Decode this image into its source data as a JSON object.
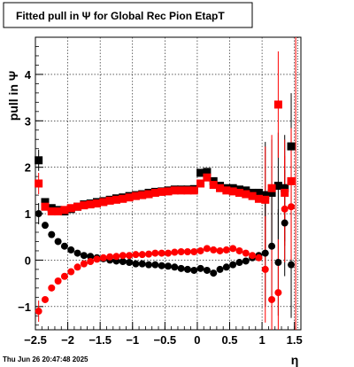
{
  "chart_data": {
    "type": "scatter",
    "title": "Fitted pull in  Ψ  for Global Rec Pion EtapT",
    "xlabel": "η",
    "ylabel": "pull in  Ψ",
    "xlim": [
      -2.5,
      1.6
    ],
    "ylim": [
      -1.5,
      4.8
    ],
    "xticks": [
      -2.5,
      -2,
      -1.5,
      -1,
      -0.5,
      0,
      0.5,
      1,
      1.5
    ],
    "xtick_labels": [
      "−2.5",
      "−2",
      "−1.5",
      "−1",
      "−0.5",
      "0",
      "0.5",
      "1",
      "1.5"
    ],
    "yticks": [
      -1,
      0,
      1,
      2,
      3,
      4
    ],
    "ytick_labels": [
      "−1",
      "0",
      "1",
      "2",
      "3",
      "4"
    ],
    "grid": true,
    "footer": "Thu Jun 26 20:47:48 2025",
    "series": [
      {
        "marker": "square",
        "color": "#000000",
        "x": [
          -2.45,
          -2.35,
          -2.25,
          -2.15,
          -2.05,
          -1.95,
          -1.85,
          -1.75,
          -1.65,
          -1.55,
          -1.45,
          -1.35,
          -1.25,
          -1.15,
          -1.05,
          -0.95,
          -0.85,
          -0.75,
          -0.65,
          -0.55,
          -0.45,
          -0.35,
          -0.25,
          -0.15,
          -0.05,
          0.05,
          0.15,
          0.25,
          0.35,
          0.45,
          0.55,
          0.65,
          0.75,
          0.85,
          0.95,
          1.05,
          1.15,
          1.25,
          1.35,
          1.45
        ],
        "y": [
          2.15,
          1.25,
          1.12,
          1.08,
          1.05,
          1.1,
          1.15,
          1.2,
          1.22,
          1.25,
          1.27,
          1.3,
          1.33,
          1.35,
          1.38,
          1.4,
          1.42,
          1.45,
          1.47,
          1.48,
          1.5,
          1.52,
          1.52,
          1.52,
          1.53,
          1.88,
          1.9,
          1.7,
          1.6,
          1.55,
          1.55,
          1.52,
          1.5,
          1.45,
          1.45,
          1.4,
          1.45,
          1.6,
          1.55,
          2.45
        ]
      },
      {
        "marker": "square",
        "color": "#ff0000",
        "x": [
          -2.45,
          -2.35,
          -2.25,
          -2.15,
          -2.05,
          -1.95,
          -1.85,
          -1.75,
          -1.65,
          -1.55,
          -1.45,
          -1.35,
          -1.25,
          -1.15,
          -1.05,
          -0.95,
          -0.85,
          -0.75,
          -0.65,
          -0.55,
          -0.45,
          -0.35,
          -0.25,
          -0.15,
          -0.05,
          0.05,
          0.15,
          0.25,
          0.35,
          0.45,
          0.55,
          0.65,
          0.75,
          0.85,
          0.95,
          1.05,
          1.15,
          1.25,
          1.35,
          1.45
        ],
        "y": [
          1.65,
          1.15,
          1.05,
          1.05,
          1.08,
          1.12,
          1.15,
          1.18,
          1.2,
          1.22,
          1.25,
          1.28,
          1.3,
          1.32,
          1.35,
          1.38,
          1.4,
          1.42,
          1.45,
          1.47,
          1.48,
          1.5,
          1.5,
          1.5,
          1.5,
          1.65,
          1.78,
          1.62,
          1.55,
          1.5,
          1.48,
          1.45,
          1.42,
          1.38,
          1.32,
          1.3,
          1.55,
          3.35,
          1.45,
          1.7
        ]
      },
      {
        "marker": "circle",
        "color": "#000000",
        "x": [
          -2.45,
          -2.35,
          -2.25,
          -2.15,
          -2.05,
          -1.95,
          -1.85,
          -1.75,
          -1.65,
          -1.55,
          -1.45,
          -1.35,
          -1.25,
          -1.15,
          -1.05,
          -0.95,
          -0.85,
          -0.75,
          -0.65,
          -0.55,
          -0.45,
          -0.35,
          -0.25,
          -0.15,
          -0.05,
          0.05,
          0.15,
          0.25,
          0.35,
          0.45,
          0.55,
          0.65,
          0.75,
          0.85,
          0.95,
          1.05,
          1.15,
          1.25,
          1.35,
          1.45
        ],
        "y": [
          1.0,
          0.75,
          0.55,
          0.4,
          0.3,
          0.22,
          0.15,
          0.1,
          0.08,
          0.05,
          0.03,
          0.0,
          -0.02,
          -0.03,
          -0.05,
          -0.08,
          -0.08,
          -0.1,
          -0.1,
          -0.12,
          -0.13,
          -0.15,
          -0.18,
          -0.2,
          -0.22,
          -0.18,
          -0.22,
          -0.28,
          -0.2,
          -0.15,
          -0.1,
          -0.05,
          -0.02,
          0.05,
          0.1,
          0.15,
          0.3,
          -0.05,
          0.8,
          -0.1
        ]
      },
      {
        "marker": "circle",
        "color": "#ff0000",
        "x": [
          -2.45,
          -2.35,
          -2.25,
          -2.15,
          -2.05,
          -1.95,
          -1.85,
          -1.75,
          -1.65,
          -1.55,
          -1.45,
          -1.35,
          -1.25,
          -1.15,
          -1.05,
          -0.95,
          -0.85,
          -0.75,
          -0.65,
          -0.55,
          -0.45,
          -0.35,
          -0.25,
          -0.15,
          -0.05,
          0.05,
          0.15,
          0.25,
          0.35,
          0.45,
          0.55,
          0.65,
          0.75,
          0.85,
          0.95,
          1.05,
          1.15,
          1.25,
          1.35,
          1.45
        ],
        "y": [
          -1.1,
          -0.85,
          -0.6,
          -0.45,
          -0.35,
          -0.25,
          -0.15,
          -0.08,
          -0.03,
          0.02,
          0.05,
          0.07,
          0.08,
          0.1,
          0.1,
          0.12,
          0.12,
          0.13,
          0.15,
          0.15,
          0.15,
          0.17,
          0.18,
          0.18,
          0.18,
          0.2,
          0.25,
          0.22,
          0.2,
          0.22,
          0.25,
          0.2,
          0.15,
          0.1,
          0.05,
          -0.2,
          -0.85,
          -0.7,
          1.1,
          1.15
        ]
      }
    ]
  }
}
